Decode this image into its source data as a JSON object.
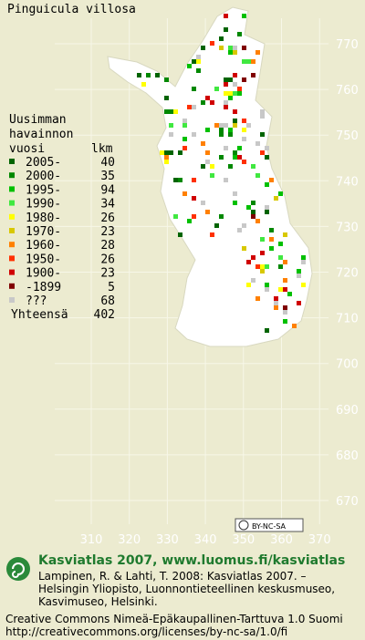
{
  "title": "Pinguicula villosa",
  "legend": {
    "header": [
      "Uusimman",
      "havainnon",
      "vuosi"
    ],
    "count_header": "lkm",
    "rows": [
      {
        "label": "2005-",
        "count": "40",
        "color": "#006400"
      },
      {
        "label": "2000-",
        "count": "35",
        "color": "#008800"
      },
      {
        "label": "1995-",
        "count": "94",
        "color": "#00c000"
      },
      {
        "label": "1990-",
        "count": "34",
        "color": "#40e840"
      },
      {
        "label": "1980-",
        "count": "26",
        "color": "#ffff00"
      },
      {
        "label": "1970-",
        "count": "23",
        "color": "#d8c800"
      },
      {
        "label": "1960-",
        "count": "28",
        "color": "#ff8000"
      },
      {
        "label": "1950-",
        "count": "26",
        "color": "#ff3000"
      },
      {
        "label": "1900-",
        "count": "23",
        "color": "#d00000"
      },
      {
        "label": "-1899",
        "count": "5",
        "color": "#800000"
      },
      {
        "label": "???",
        "count": "68",
        "color": "#c8c8c8"
      }
    ],
    "total_label": "Yhteensä",
    "total": "402"
  },
  "map": {
    "yticks": [
      "770",
      "760",
      "750",
      "740",
      "730",
      "720",
      "710",
      "700",
      "690",
      "680",
      "670"
    ],
    "xticks": [
      "310",
      "320",
      "330",
      "340",
      "350",
      "360",
      "370"
    ]
  },
  "license_badge": "BY-NC-SA",
  "footer": {
    "site": "Kasviatlas 2007, www.luomus.fi/kasviatlas",
    "citation": [
      "Lampinen, R. & Lahti, T. 2008: Kasviatlas 2007. –",
      "Helsingin Yliopisto, Luonnontieteellinen keskusmuseo,",
      "Kasvimuseo, Helsinki."
    ],
    "license": [
      "Creative Commons Nimeä-Epäkaupallinen-Tarttuva 1.0 Suomi",
      "http://creativecommons.org/licenses/by-nc-sa/1.0/fi"
    ]
  }
}
